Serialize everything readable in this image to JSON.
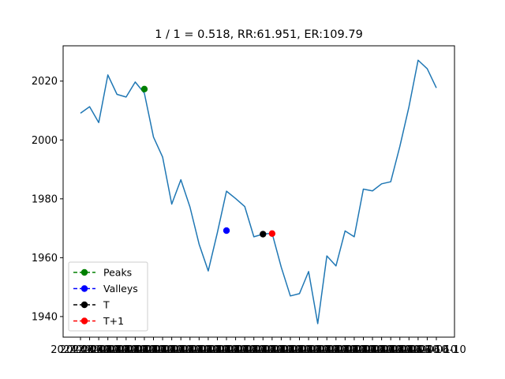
{
  "chart_data": {
    "type": "line",
    "title": "1 / 1 = 0.518, RR:61.951, ER:109.79",
    "ylim": [
      1933,
      2032
    ],
    "y_ticks": [
      1940,
      1960,
      1980,
      2000,
      2020
    ],
    "x_tick_text": "2024-06-10",
    "grid": false,
    "legend_position": "lower-left",
    "series": [
      {
        "color": "#1f77b4",
        "values": [
          2009.1,
          2011.3,
          2005.9,
          2022.1,
          2015.5,
          2014.6,
          2019.7,
          2015.9,
          2001.0,
          1994.2,
          1978.2,
          1986.5,
          1977.2,
          1964.6,
          1955.5,
          1968.5,
          1982.6,
          1980.1,
          1977.4,
          1967.1,
          1968.0,
          1968.3,
          1956.8,
          1947.0,
          1947.8,
          1955.3,
          1937.6,
          1960.6,
          1957.2,
          1969.1,
          1967.1,
          1983.3,
          1982.7,
          1985.1,
          1985.8,
          1997.8,
          2011.3,
          2027.1,
          2024.2,
          2017.7
        ]
      }
    ],
    "markers": [
      {
        "name": "Peaks",
        "color": "#008000",
        "x": 7,
        "y": 2017.3
      },
      {
        "name": "Valleys",
        "color": "#0000ff",
        "x": 16,
        "y": 1969.2
      },
      {
        "name": "T",
        "color": "#000000",
        "x": 20,
        "y": 1968.0
      },
      {
        "name": "T+1",
        "color": "#ff0000",
        "x": 21,
        "y": 1968.2
      }
    ]
  }
}
